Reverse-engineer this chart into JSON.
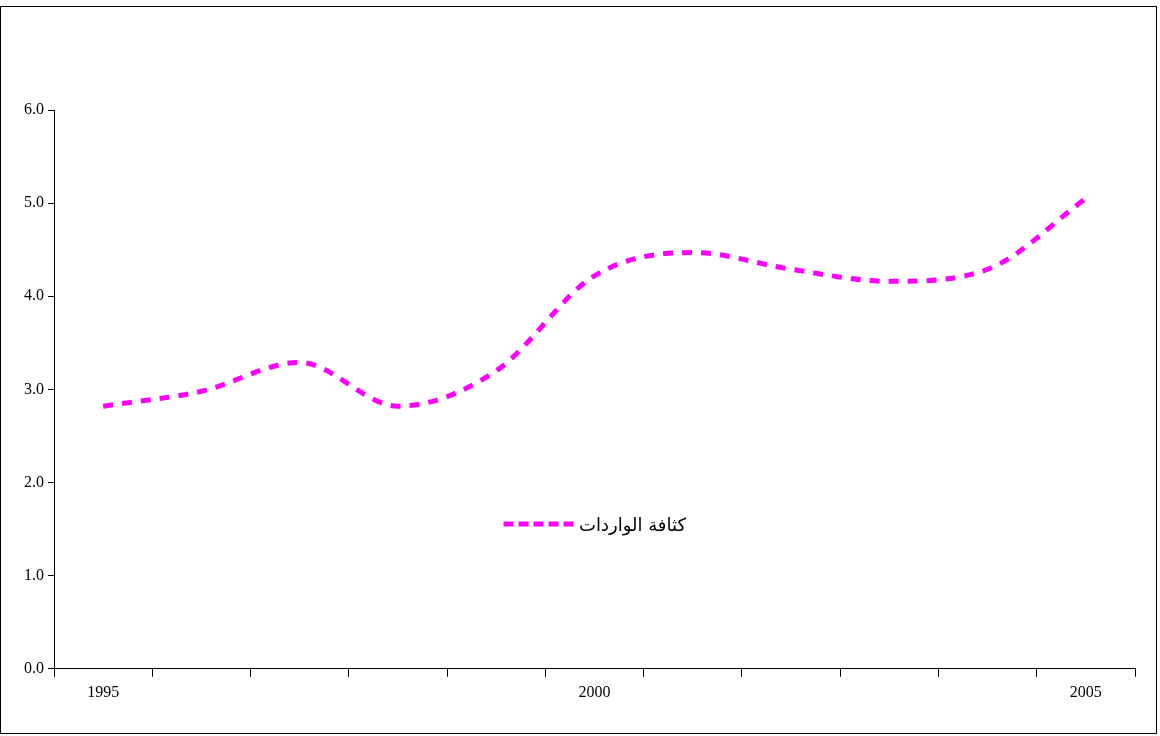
{
  "chart_data": {
    "type": "line",
    "categories": [
      "1995",
      null,
      null,
      null,
      null,
      "2000",
      null,
      null,
      null,
      null,
      "2005"
    ],
    "series": [
      {
        "name": "كثافة الواردات",
        "color": "#ff00ff",
        "values": [
          2.82,
          2.98,
          3.29,
          2.82,
          3.2,
          4.22,
          4.47,
          4.29,
          4.16,
          4.29,
          5.05
        ]
      }
    ],
    "ylim": [
      0,
      6
    ],
    "yticks": [
      {
        "value": 0,
        "label": "0.0"
      },
      {
        "value": 1,
        "label": "1.0"
      },
      {
        "value": 2,
        "label": "2.0"
      },
      {
        "value": 3,
        "label": "3.0"
      },
      {
        "value": 4,
        "label": "4.0"
      },
      {
        "value": 5,
        "label": "5.0"
      },
      {
        "value": 6,
        "label": "6.0"
      }
    ],
    "grid": false,
    "legend": "center",
    "marker": "none",
    "line_style": "dashed"
  }
}
